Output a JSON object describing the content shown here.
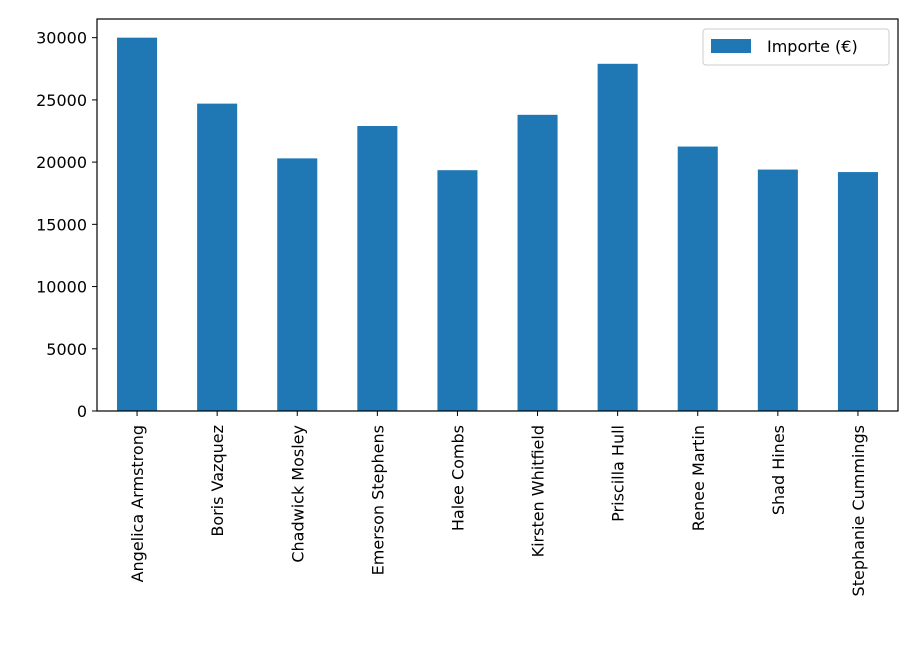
{
  "chart_data": {
    "type": "bar",
    "categories": [
      "Angelica Armstrong",
      "Boris Vazquez",
      "Chadwick Mosley",
      "Emerson Stephens",
      "Halee Combs",
      "Kirsten Whitfield",
      "Priscilla Hull",
      "Renee Martin",
      "Shad Hines",
      "Stephanie Cummings"
    ],
    "series": [
      {
        "name": "Importe (€)",
        "color": "#1f77b4",
        "values": [
          30000,
          24700,
          20300,
          22900,
          19350,
          23800,
          27900,
          21250,
          19400,
          19200
        ]
      }
    ],
    "title": "",
    "xlabel": "",
    "ylabel": "",
    "ylim": [
      0,
      31500
    ],
    "yticks": [
      0,
      5000,
      10000,
      15000,
      20000,
      25000,
      30000
    ],
    "grid": false,
    "legend_position": "top-right"
  }
}
